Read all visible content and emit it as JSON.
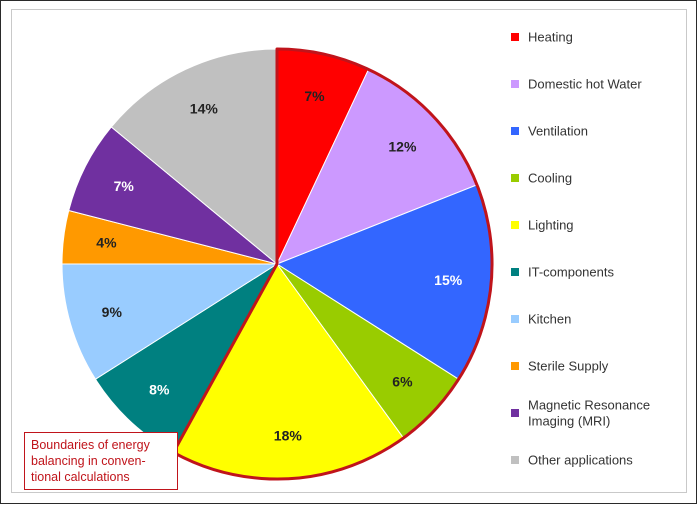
{
  "chart_data": {
    "type": "pie",
    "slices": [
      {
        "label": "Heating",
        "value": 7,
        "display": "7%",
        "color": "#ff0000",
        "labelColor": "#222222"
      },
      {
        "label": "Domestic hot Water",
        "value": 12,
        "display": "12%",
        "color": "#cc99ff",
        "labelColor": "#222222"
      },
      {
        "label": "Ventilation",
        "value": 15,
        "display": "15%",
        "color": "#3366ff",
        "labelColor": "#ffffff"
      },
      {
        "label": "Cooling",
        "value": 6,
        "display": "6%",
        "color": "#99cc00",
        "labelColor": "#222222"
      },
      {
        "label": "Lighting",
        "value": 18,
        "display": "18%",
        "color": "#ffff00",
        "labelColor": "#222222"
      },
      {
        "label": "IT-components",
        "value": 8,
        "display": "8%",
        "color": "#008080",
        "labelColor": "#ffffff"
      },
      {
        "label": "Kitchen",
        "value": 9,
        "display": "9%",
        "color": "#99ccff",
        "labelColor": "#222222"
      },
      {
        "label": "Sterile Supply",
        "value": 4,
        "display": "4%",
        "color": "#ff9900",
        "labelColor": "#222222"
      },
      {
        "label": "Magnetic Resonance Imaging (MRI)",
        "value": 7,
        "display": "7%",
        "color": "#7030a0",
        "labelColor": "#ffffff"
      },
      {
        "label": "Other applications",
        "value": 14,
        "display": "14%",
        "color": "#c0c0c0",
        "labelColor": "#222222"
      }
    ],
    "legend_position": "right",
    "highlight": {
      "covers": [
        "Heating",
        "Domestic hot Water",
        "Ventilation",
        "Cooling",
        "Lighting"
      ],
      "color": "#c0141b"
    }
  },
  "annotation": {
    "lines": [
      "Boundaries of energy",
      "balancing in conven-",
      "tional calculations"
    ],
    "color": "#c0141b"
  }
}
